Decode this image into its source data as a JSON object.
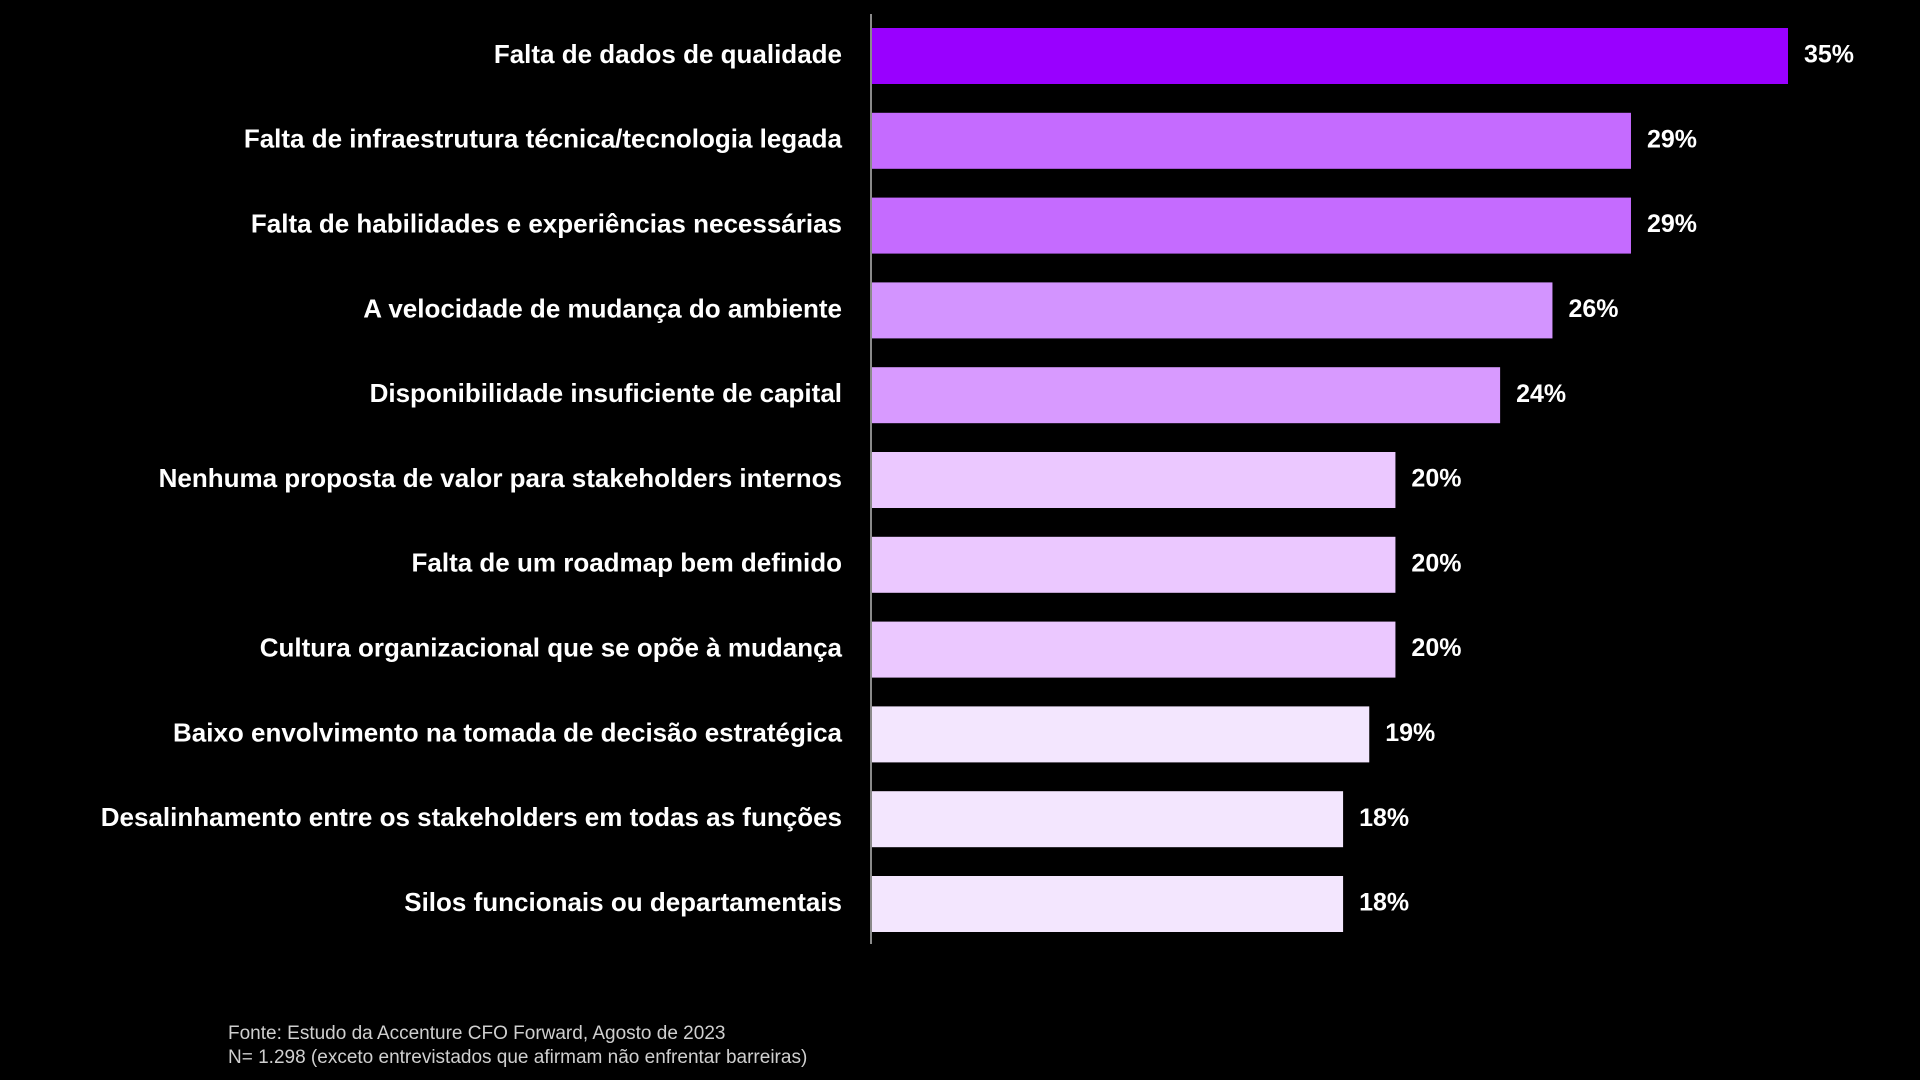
{
  "chart_data": {
    "type": "bar",
    "orientation": "horizontal",
    "categories": [
      "Falta de dados de qualidade",
      "Falta de infraestrutura técnica/tecnologia legada",
      "Falta de habilidades e experiências necessárias",
      "A velocidade de mudança do ambiente",
      "Disponibilidade insuficiente de capital",
      "Nenhuma proposta de valor para stakeholders internos",
      "Falta de um roadmap bem definido",
      "Cultura organizacional que se opõe à mudança",
      "Baixo envolvimento na tomada de decisão estratégica",
      "Desalinhamento entre os stakeholders em todas as funções",
      "Silos funcionais ou departamentais"
    ],
    "values": [
      35,
      29,
      29,
      26,
      24,
      20,
      20,
      20,
      19,
      18,
      18
    ],
    "value_labels": [
      "35%",
      "29%",
      "29%",
      "26%",
      "24%",
      "20%",
      "20%",
      "20%",
      "19%",
      "18%",
      "18%"
    ],
    "bar_colors": [
      "#9900ff",
      "#c56bff",
      "#c56bff",
      "#d394ff",
      "#d89aff",
      "#ebc8ff",
      "#ebc8ff",
      "#ebc8ff",
      "#f3e6fe",
      "#f3e6fe",
      "#f3e6fe"
    ],
    "title": "",
    "xlabel": "",
    "ylabel": "",
    "xlim": [
      0,
      35
    ],
    "grid": false,
    "legend": "none"
  },
  "footer": {
    "source": "Fonte: Estudo da Accenture CFO Forward, Agosto de 2023",
    "note": "N= 1.298 (exceto entrevistados que afirmam não enfrentar barreiras)"
  }
}
